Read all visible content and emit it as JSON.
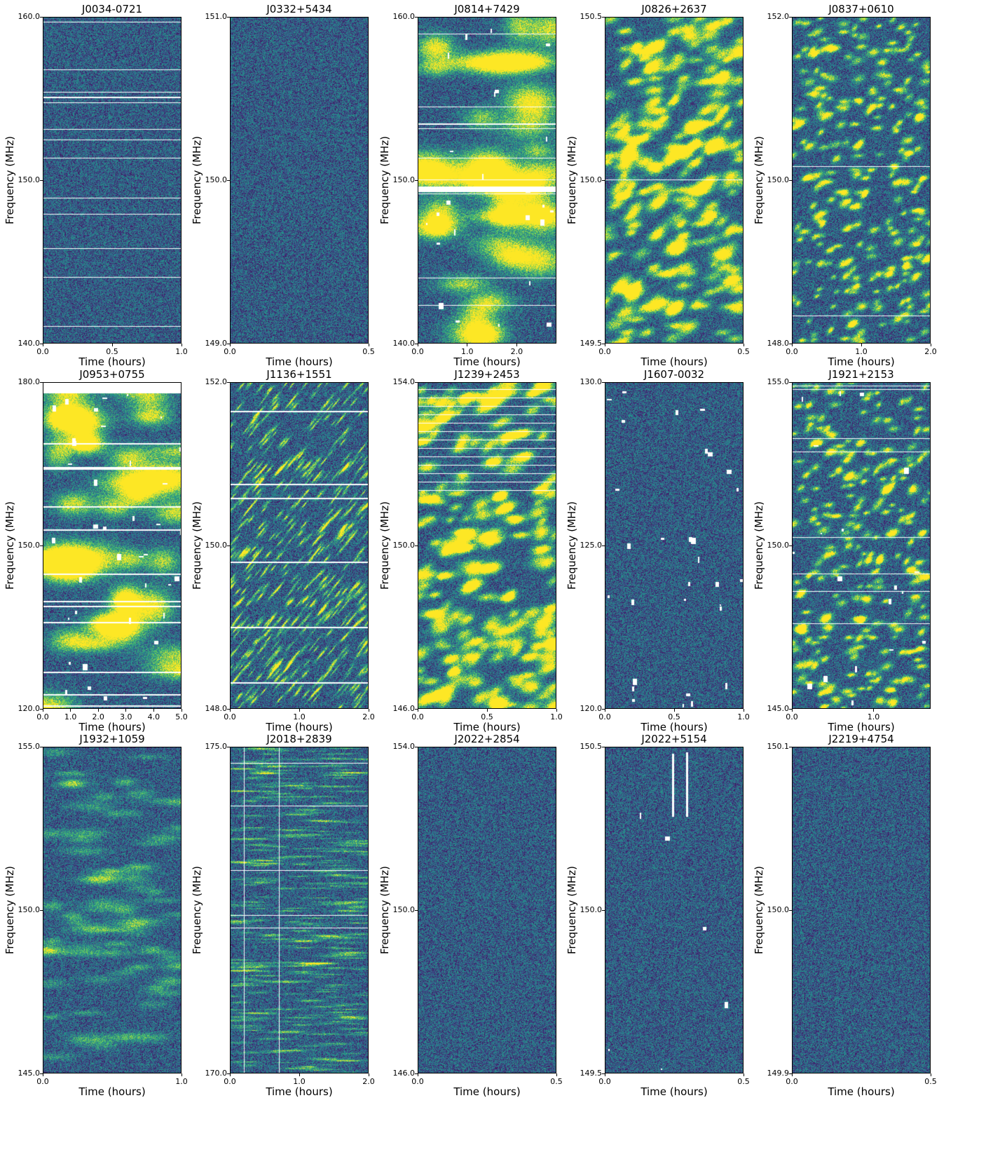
{
  "colormap": [
    "#440154",
    "#3b528b",
    "#21918c",
    "#5ec962",
    "#fde725"
  ],
  "chart_data": [
    {
      "type": "heatmap",
      "title": "J0034-0721",
      "xlabel": "Time (hours)",
      "ylabel": "Frequency (MHz)",
      "xlim": [
        0,
        1.0
      ],
      "ylim": [
        140.0,
        160.0
      ],
      "xticks": [
        0.0,
        0.5,
        1.0
      ],
      "xtick_labels": [
        "0.0",
        "0.5",
        "1.0"
      ],
      "yticks": [
        140.0,
        150.0,
        160.0
      ],
      "ytick_labels": [
        "140.0",
        "150.0",
        "160.0"
      ],
      "texture": "fine-noise-with-channel-flags"
    },
    {
      "type": "heatmap",
      "title": "J0332+5434",
      "xlabel": "Time (hours)",
      "ylabel": "Frequency (MHz)",
      "xlim": [
        0,
        0.5
      ],
      "ylim": [
        149.0,
        151.0
      ],
      "xticks": [
        0.0,
        0.5
      ],
      "xtick_labels": [
        "0.0",
        "0.5"
      ],
      "yticks": [
        149.0,
        150.0,
        151.0
      ],
      "ytick_labels": [
        "149.0",
        "150.0",
        "151.0"
      ],
      "texture": "fine-noise"
    },
    {
      "type": "heatmap",
      "title": "J0814+7429",
      "xlabel": "Time (hours)",
      "ylabel": "Frequency (MHz)",
      "xlim": [
        0,
        2.8
      ],
      "ylim": [
        140.0,
        160.0
      ],
      "xticks": [
        0.0,
        1.0,
        2.0
      ],
      "xtick_labels": [
        "0.0",
        "1.0",
        "2.0"
      ],
      "yticks": [
        140.0,
        150.0,
        160.0
      ],
      "ytick_labels": [
        "140.0",
        "150.0",
        "160.0"
      ],
      "texture": "large-scintles"
    },
    {
      "type": "heatmap",
      "title": "J0826+2637",
      "xlabel": "Time (hours)",
      "ylabel": "Frequency (MHz)",
      "xlim": [
        0,
        0.5
      ],
      "ylim": [
        149.5,
        150.5
      ],
      "xticks": [
        0.0,
        0.5
      ],
      "xtick_labels": [
        "0.0",
        "0.5"
      ],
      "yticks": [
        149.5,
        150.0,
        150.5
      ],
      "ytick_labels": [
        "149.5",
        "150.0",
        "150.5"
      ],
      "texture": "medium-scintles"
    },
    {
      "type": "heatmap",
      "title": "J0837+0610",
      "xlabel": "Time (hours)",
      "ylabel": "Frequency (MHz)",
      "xlim": [
        0,
        2.0
      ],
      "ylim": [
        148.0,
        152.0
      ],
      "xticks": [
        0.0,
        1.0,
        2.0
      ],
      "xtick_labels": [
        "0.0",
        "1.0",
        "2.0"
      ],
      "yticks": [
        148.0,
        150.0,
        152.0
      ],
      "ytick_labels": [
        "148.0",
        "150.0",
        "152.0"
      ],
      "texture": "small-scintles"
    },
    {
      "type": "heatmap",
      "title": "J0953+0755",
      "xlabel": "Time (hours)",
      "ylabel": "Frequency (MHz)",
      "xlim": [
        0,
        5.0
      ],
      "ylim": [
        120.0,
        180.0
      ],
      "xticks": [
        0.0,
        1.0,
        2.0,
        3.0,
        4.0,
        5.0
      ],
      "xtick_labels": [
        "0.0",
        "1.0",
        "2.0",
        "3.0",
        "4.0",
        "5.0"
      ],
      "yticks": [
        120.0,
        150.0,
        180.0
      ],
      "ytick_labels": [
        "120.0",
        "150.0",
        "180.0"
      ],
      "texture": "large-scintles-flagged"
    },
    {
      "type": "heatmap",
      "title": "J1136+1551",
      "xlabel": "Time (hours)",
      "ylabel": "Frequency (MHz)",
      "xlim": [
        0,
        2.0
      ],
      "ylim": [
        148.0,
        152.0
      ],
      "xticks": [
        0.0,
        1.0,
        2.0
      ],
      "xtick_labels": [
        "0.0",
        "1.0",
        "2.0"
      ],
      "yticks": [
        148.0,
        150.0,
        152.0
      ],
      "ytick_labels": [
        "148.0",
        "150.0",
        "152.0"
      ],
      "texture": "slanted-streaks"
    },
    {
      "type": "heatmap",
      "title": "J1239+2453",
      "xlabel": "Time (hours)",
      "ylabel": "Frequency (MHz)",
      "xlim": [
        0,
        1.0
      ],
      "ylim": [
        146.0,
        154.0
      ],
      "xticks": [
        0.0,
        0.5,
        1.0
      ],
      "xtick_labels": [
        "0.0",
        "0.5",
        "1.0"
      ],
      "yticks": [
        146.0,
        150.0,
        154.0
      ],
      "ytick_labels": [
        "146.0",
        "150.0",
        "154.0"
      ],
      "texture": "medium-scintles-flagged-top"
    },
    {
      "type": "heatmap",
      "title": "J1607-0032",
      "xlabel": "Time (hours)",
      "ylabel": "Frequency (MHz)",
      "xlim": [
        0,
        1.0
      ],
      "ylim": [
        120.0,
        130.0
      ],
      "xticks": [
        0.0,
        0.5,
        1.0
      ],
      "xtick_labels": [
        "0.0",
        "0.5",
        "1.0"
      ],
      "yticks": [
        120.0,
        125.0,
        130.0
      ],
      "ytick_labels": [
        "120.0",
        "125.0",
        "130.0"
      ],
      "texture": "fine-noise-sparse-flags"
    },
    {
      "type": "heatmap",
      "title": "J1921+2153",
      "xlabel": "Time (hours)",
      "ylabel": "Frequency (MHz)",
      "xlim": [
        0,
        1.7
      ],
      "ylim": [
        145.0,
        155.0
      ],
      "xticks": [
        0.0,
        1.0
      ],
      "xtick_labels": [
        "0.0",
        "1.0"
      ],
      "yticks": [
        145.0,
        150.0,
        155.0
      ],
      "ytick_labels": [
        "145.0",
        "150.0",
        "155.0"
      ],
      "texture": "small-scintles-flagged"
    },
    {
      "type": "heatmap",
      "title": "J1932+1059",
      "xlabel": "Time (hours)",
      "ylabel": "Frequency (MHz)",
      "xlim": [
        0,
        1.0
      ],
      "ylim": [
        145.0,
        155.0
      ],
      "xticks": [
        0.0,
        1.0
      ],
      "xtick_labels": [
        "0.0",
        "1.0"
      ],
      "yticks": [
        145.0,
        150.0,
        155.0
      ],
      "ytick_labels": [
        "145.0",
        "150.0",
        "155.0"
      ],
      "texture": "faint-slanted"
    },
    {
      "type": "heatmap",
      "title": "J2018+2839",
      "xlabel": "Time (hours)",
      "ylabel": "Frequency (MHz)",
      "xlim": [
        0,
        2.0
      ],
      "ylim": [
        170.0,
        175.0
      ],
      "xticks": [
        0.0,
        1.0,
        2.0
      ],
      "xtick_labels": [
        "0.0",
        "1.0",
        "2.0"
      ],
      "yticks": [
        170.0,
        175.0
      ],
      "ytick_labels": [
        "170.0",
        "175.0"
      ],
      "texture": "horizontal-streaks"
    },
    {
      "type": "heatmap",
      "title": "J2022+2854",
      "xlabel": "Time (hours)",
      "ylabel": "Frequency (MHz)",
      "xlim": [
        0,
        0.5
      ],
      "ylim": [
        146.0,
        154.0
      ],
      "xticks": [
        0.0,
        0.5
      ],
      "xtick_labels": [
        "0.0",
        "0.5"
      ],
      "yticks": [
        146.0,
        150.0,
        154.0
      ],
      "ytick_labels": [
        "146.0",
        "150.0",
        "154.0"
      ],
      "texture": "fine-noise"
    },
    {
      "type": "heatmap",
      "title": "J2022+5154",
      "xlabel": "Time (hours)",
      "ylabel": "Frequency (MHz)",
      "xlim": [
        0,
        0.5
      ],
      "ylim": [
        149.5,
        150.5
      ],
      "xticks": [
        0.0,
        0.5
      ],
      "xtick_labels": [
        "0.0",
        "0.5"
      ],
      "yticks": [
        149.5,
        150.0,
        150.5
      ],
      "ytick_labels": [
        "149.5",
        "150.0",
        "150.5"
      ],
      "texture": "fine-noise-top-flags"
    },
    {
      "type": "heatmap",
      "title": "J2219+4754",
      "xlabel": "Time (hours)",
      "ylabel": "Frequency (MHz)",
      "xlim": [
        0,
        0.5
      ],
      "ylim": [
        149.9,
        150.1
      ],
      "xticks": [
        0.0,
        0.5
      ],
      "xtick_labels": [
        "0.0",
        "0.5"
      ],
      "yticks": [
        149.9,
        150.0,
        150.1
      ],
      "ytick_labels": [
        "149.9",
        "150.0",
        "150.1"
      ],
      "texture": "fine-noise"
    }
  ]
}
